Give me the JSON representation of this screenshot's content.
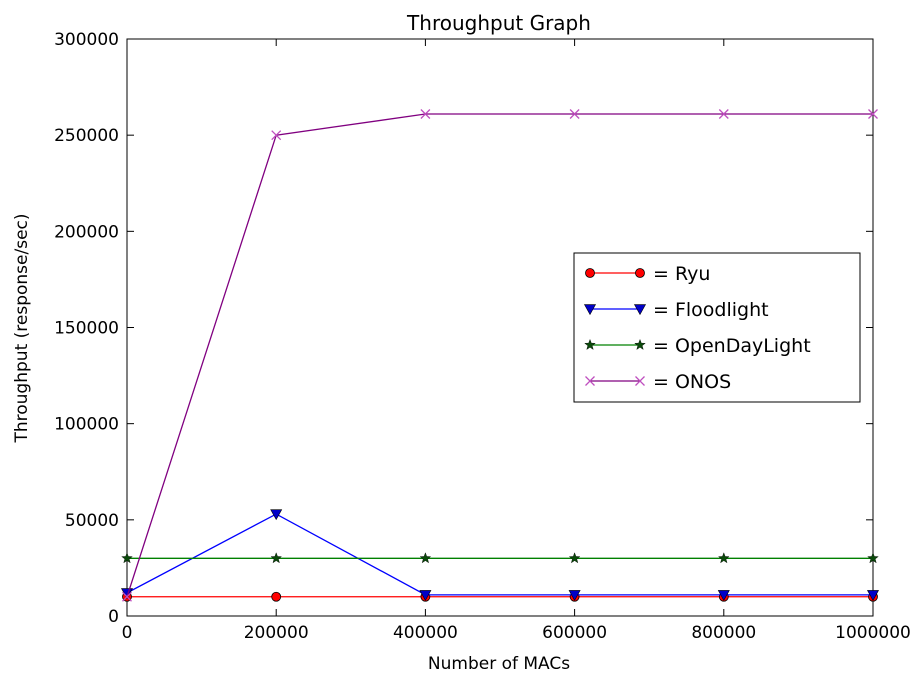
{
  "chart_data": {
    "type": "line",
    "title": "Throughput Graph",
    "xlabel": "Number of MACs",
    "ylabel": "Throughput (response/sec)",
    "x": [
      0,
      200000,
      400000,
      600000,
      800000,
      1000000
    ],
    "xlim": [
      0,
      1000000
    ],
    "ylim": [
      0,
      300000
    ],
    "xticks": [
      0,
      200000,
      400000,
      600000,
      800000,
      1000000
    ],
    "yticks": [
      0,
      50000,
      100000,
      150000,
      200000,
      250000,
      300000
    ],
    "xtick_labels": [
      "0",
      "200000",
      "400000",
      "600000",
      "800000",
      "1000000"
    ],
    "ytick_labels": [
      "0",
      "50000",
      "100000",
      "150000",
      "200000",
      "250000",
      "300000"
    ],
    "grid": false,
    "legend_position": "center-right",
    "series": [
      {
        "name": "= Ryu",
        "marker": "circle",
        "color": "#ff0000",
        "marker_color": "#ff0000",
        "values": [
          10000,
          10000,
          10000,
          10000,
          10000,
          10000
        ]
      },
      {
        "name": "= Floodlight",
        "marker": "triangle-down",
        "color": "#0000ff",
        "marker_color": "#0000c8",
        "values": [
          12000,
          53000,
          11000,
          11000,
          11000,
          11000
        ]
      },
      {
        "name": "= OpenDayLight",
        "marker": "star",
        "color": "#008000",
        "marker_color": "#0a4a0a",
        "values": [
          30000,
          30000,
          30000,
          30000,
          30000,
          30000
        ]
      },
      {
        "name": "= ONOS",
        "marker": "x",
        "color": "#800080",
        "marker_color": "#bf4fbf",
        "values": [
          10000,
          250000,
          261000,
          261000,
          261000,
          261000
        ]
      }
    ]
  }
}
